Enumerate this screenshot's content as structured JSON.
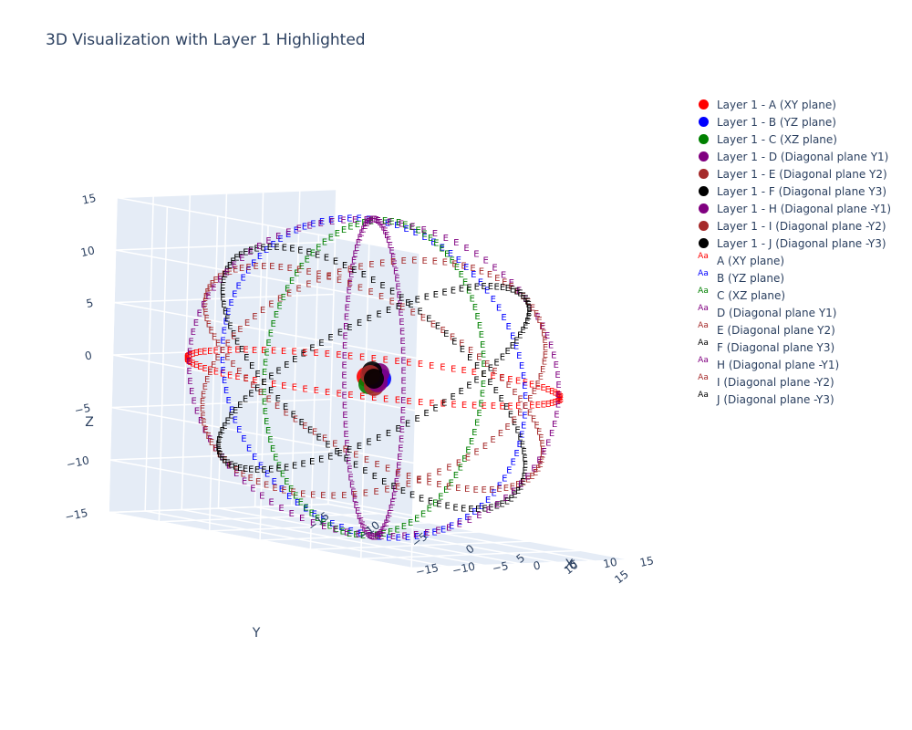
{
  "chart_data": {
    "type": "scatter3d",
    "title": "3D Visualization with Layer 1 Highlighted",
    "axes": {
      "x": {
        "label": "X",
        "range": [
          -15,
          15
        ],
        "ticks": [
          -15,
          -10,
          -5,
          0,
          5,
          10,
          15
        ]
      },
      "y": {
        "label": "Y",
        "range": [
          -15,
          15
        ],
        "ticks": [
          -15,
          -10,
          -5,
          0,
          5,
          10,
          15
        ]
      },
      "z": {
        "label": "Z",
        "range": [
          -15,
          15
        ],
        "ticks": [
          -15,
          -10,
          -5,
          0,
          5,
          10,
          15
        ]
      }
    },
    "text_marker": "E",
    "circles": [
      {
        "name": "A (XY plane)",
        "color": "#ff0000",
        "radius": 15,
        "normal": [
          0,
          0,
          1
        ]
      },
      {
        "name": "B (YZ plane)",
        "color": "#0000ff",
        "radius": 15,
        "normal": [
          1,
          0,
          0
        ]
      },
      {
        "name": "C (XZ plane)",
        "color": "#008000",
        "radius": 15,
        "normal": [
          0,
          1,
          0
        ]
      },
      {
        "name": "D (Diagonal plane Y1)",
        "color": "#800080",
        "radius": 15,
        "normal": [
          1,
          1,
          0
        ]
      },
      {
        "name": "E (Diagonal plane Y2)",
        "color": "#a52a2a",
        "radius": 15,
        "normal": [
          1,
          0,
          1
        ]
      },
      {
        "name": "F (Diagonal plane Y3)",
        "color": "#000000",
        "radius": 15,
        "normal": [
          0,
          1,
          1
        ]
      },
      {
        "name": "H (Diagonal plane -Y1)",
        "color": "#800080",
        "radius": 15,
        "normal": [
          1,
          -1,
          0
        ]
      },
      {
        "name": "I (Diagonal plane -Y2)",
        "color": "#a52a2a",
        "radius": 15,
        "normal": [
          1,
          0,
          -1
        ]
      },
      {
        "name": "J (Diagonal plane -Y3)",
        "color": "#000000",
        "radius": 15,
        "normal": [
          0,
          1,
          -1
        ]
      }
    ],
    "layer1_series": [
      {
        "name": "Layer 1 - A (XY plane)",
        "color": "#ff0000"
      },
      {
        "name": "Layer 1 - B (YZ plane)",
        "color": "#0000ff"
      },
      {
        "name": "Layer 1 - C (XZ plane)",
        "color": "#008000"
      },
      {
        "name": "Layer 1 - D (Diagonal plane Y1)",
        "color": "#800080"
      },
      {
        "name": "Layer 1 - E (Diagonal plane Y2)",
        "color": "#a52a2a"
      },
      {
        "name": "Layer 1 - F (Diagonal plane Y3)",
        "color": "#000000"
      },
      {
        "name": "Layer 1 - H (Diagonal plane -Y1)",
        "color": "#800080"
      },
      {
        "name": "Layer 1 - I (Diagonal plane -Y2)",
        "color": "#a52a2a"
      },
      {
        "name": "Layer 1 - J (Diagonal plane -Y3)",
        "color": "#000000"
      }
    ],
    "legend_position": "right",
    "background_colors": {
      "scene": "#e5ecf6",
      "grid": "#ffffff"
    }
  }
}
